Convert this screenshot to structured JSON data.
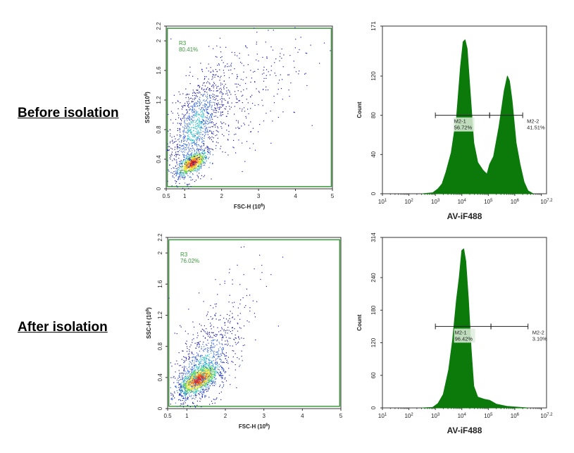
{
  "row_labels": [
    "Before isolation",
    "After isolation"
  ],
  "colors": {
    "gate": "#3a9a3a",
    "histogram_fill": "#0b7a0b",
    "marker": "#222222",
    "density_scale": [
      "#1b1bb0",
      "#3a6ae0",
      "#35c0c8",
      "#5fd35a",
      "#e8e030",
      "#f08a20",
      "#e02a1a"
    ]
  },
  "chart_data": [
    {
      "type": "scatter",
      "panel": "before-scatter",
      "xlabel": "FSC-H (10",
      "xlabel_sup": "6",
      "xlabel_end": ")",
      "ylabel": "SSC-H (10",
      "ylabel_sup": "6",
      "ylabel_end": ")",
      "xlim": [
        0.5,
        5
      ],
      "ylim": [
        0,
        2.2
      ],
      "xticks": [
        "0.5",
        "1",
        "2",
        "3",
        "4",
        "5"
      ],
      "yticks": [
        "0",
        "0.4",
        "0.8",
        "1.2",
        "1.6",
        "2",
        "2.2"
      ],
      "gate": {
        "name": "R3",
        "percent": "80.41%",
        "x": [
          0.53,
          4.97
        ],
        "y": [
          0.03,
          2.17
        ]
      },
      "populations": [
        {
          "center": [
            1.2,
            0.35
          ],
          "spread": [
            0.2,
            0.08
          ],
          "share": 0.35
        },
        {
          "center": [
            1.3,
            0.85
          ],
          "spread": [
            0.4,
            0.38
          ],
          "share": 0.5
        },
        {
          "center": [
            2.4,
            1.2
          ],
          "spread": [
            0.9,
            0.5
          ],
          "share": 0.15
        }
      ]
    },
    {
      "type": "area",
      "panel": "before-histogram",
      "xlabel": "AV-iF488",
      "ylabel": "Count",
      "xscale": "log",
      "xlim_log10": [
        1,
        7.2
      ],
      "ylim": [
        0,
        171
      ],
      "xticks": [
        {
          "b": "10",
          "e": "1"
        },
        {
          "b": "10",
          "e": "2"
        },
        {
          "b": "10",
          "e": "3"
        },
        {
          "b": "10",
          "e": "4"
        },
        {
          "b": "10",
          "e": "5"
        },
        {
          "b": "10",
          "e": "6"
        },
        {
          "b": "10",
          "e": "7.2"
        }
      ],
      "yticks": [
        "0",
        "40",
        "80",
        "120",
        "171"
      ],
      "x_log10": [
        2.5,
        2.9,
        3.1,
        3.25,
        3.4,
        3.6,
        3.8,
        3.95,
        4.05,
        4.12,
        4.2,
        4.3,
        4.45,
        4.6,
        4.8,
        4.95,
        5.05,
        5.2,
        5.4,
        5.6,
        5.72,
        5.8,
        5.9,
        6.05,
        6.2,
        6.35,
        6.5,
        6.7
      ],
      "counts": [
        0,
        1,
        5,
        10,
        22,
        42,
        78,
        130,
        155,
        157,
        148,
        110,
        52,
        32,
        24,
        20,
        30,
        38,
        68,
        105,
        120,
        115,
        95,
        52,
        30,
        12,
        3,
        0
      ],
      "markers": [
        {
          "name": "M2-1",
          "percent": "56.72%",
          "range_log10": [
            3,
            5.05
          ],
          "level": 80
        },
        {
          "name": "M2-2",
          "percent": "41.51%",
          "range_log10": [
            5.05,
            6.3
          ],
          "level": 80
        }
      ]
    },
    {
      "type": "scatter",
      "panel": "after-scatter",
      "xlabel": "FSC-H (10",
      "xlabel_sup": "6",
      "xlabel_end": ")",
      "ylabel": "SSC-H (10",
      "ylabel_sup": "6",
      "ylabel_end": ")",
      "xlim": [
        0.5,
        5
      ],
      "ylim": [
        0,
        2.2
      ],
      "xticks": [
        "0.5",
        "1",
        "2",
        "3",
        "4",
        "5"
      ],
      "yticks": [
        "0",
        "0.4",
        "0.8",
        "1.2",
        "1.6",
        "2",
        "2.2"
      ],
      "gate": {
        "name": "R3",
        "percent": "76.02%",
        "x": [
          0.53,
          4.97
        ],
        "y": [
          0.03,
          2.17
        ]
      },
      "populations": [
        {
          "center": [
            1.3,
            0.38
          ],
          "spread": [
            0.25,
            0.1
          ],
          "share": 0.6
        },
        {
          "center": [
            1.4,
            0.55
          ],
          "spread": [
            0.45,
            0.3
          ],
          "share": 0.35
        },
        {
          "center": [
            2.0,
            1.2
          ],
          "spread": [
            0.7,
            0.5
          ],
          "share": 0.05
        }
      ]
    },
    {
      "type": "area",
      "panel": "after-histogram",
      "xlabel": "AV-iF488",
      "ylabel": "Count",
      "xscale": "log",
      "xlim_log10": [
        1,
        7.2
      ],
      "ylim": [
        0,
        314
      ],
      "xticks": [
        {
          "b": "10",
          "e": "1"
        },
        {
          "b": "10",
          "e": "2"
        },
        {
          "b": "10",
          "e": "3"
        },
        {
          "b": "10",
          "e": "4"
        },
        {
          "b": "10",
          "e": "5"
        },
        {
          "b": "10",
          "e": "6"
        },
        {
          "b": "10",
          "e": "7.2"
        }
      ],
      "yticks": [
        "0",
        "60",
        "120",
        "180",
        "240",
        "314"
      ],
      "x_log10": [
        2.5,
        2.9,
        3.1,
        3.3,
        3.5,
        3.65,
        3.8,
        3.9,
        4.0,
        4.07,
        4.15,
        4.25,
        4.35,
        4.45,
        4.6,
        4.85,
        5.05,
        5.3,
        5.7,
        6.2,
        6.5
      ],
      "counts": [
        0,
        1,
        8,
        25,
        70,
        125,
        200,
        240,
        290,
        293,
        270,
        200,
        110,
        40,
        20,
        16,
        14,
        7,
        3,
        1,
        0
      ],
      "markers": [
        {
          "name": "M2-1",
          "percent": "96.42%",
          "range_log10": [
            3,
            5.1
          ],
          "level": 150
        },
        {
          "name": "M2-2",
          "percent": "3.10%",
          "range_log10": [
            5.1,
            6.5
          ],
          "level": 150
        }
      ]
    }
  ]
}
